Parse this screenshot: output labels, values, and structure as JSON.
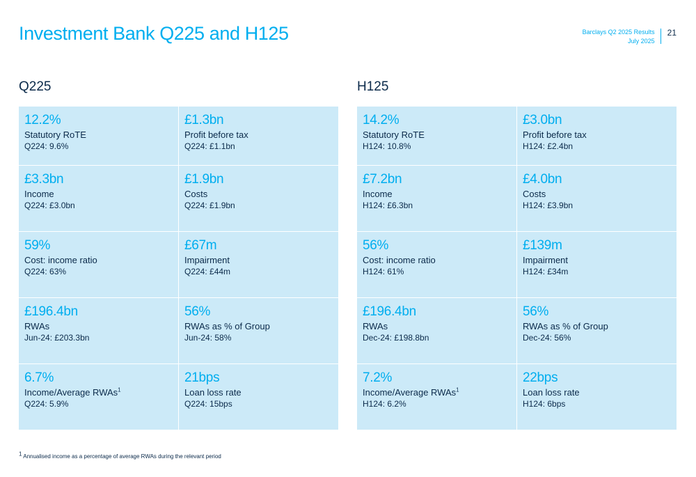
{
  "header": {
    "title": "Investment Bank Q225 and H125",
    "meta_line1": "Barclays Q2 2025 Results",
    "meta_line2": "July 2025",
    "page_number": "21"
  },
  "q225": {
    "heading": "Q225",
    "tiles": [
      {
        "value": "12.2%",
        "label": "Statutory RoTE",
        "compare": "Q224: 9.6%"
      },
      {
        "value": "£1.3bn",
        "label": "Profit before tax",
        "compare": "Q224: £1.1bn"
      },
      {
        "value": "£3.3bn",
        "label": "Income",
        "compare": "Q224: £3.0bn"
      },
      {
        "value": "£1.9bn",
        "label": "Costs",
        "compare": "Q224: £1.9bn"
      },
      {
        "value": "59%",
        "label": "Cost: income ratio",
        "compare": "Q224: 63%"
      },
      {
        "value": "£67m",
        "label": "Impairment",
        "compare": "Q224: £44m"
      },
      {
        "value": "£196.4bn",
        "label": "RWAs",
        "compare": "Jun-24: £203.3bn"
      },
      {
        "value": "56%",
        "label": "RWAs as % of Group",
        "compare": "Jun-24: 58%"
      },
      {
        "value": "6.7%",
        "label": "Income/Average RWAs",
        "sup": "1",
        "compare": "Q224: 5.9%"
      },
      {
        "value": "21bps",
        "label": "Loan loss rate",
        "compare": "Q224: 15bps"
      }
    ]
  },
  "h125": {
    "heading": "H125",
    "tiles": [
      {
        "value": "14.2%",
        "label": "Statutory RoTE",
        "compare": "H124: 10.8%"
      },
      {
        "value": "£3.0bn",
        "label": "Profit before tax",
        "compare": "H124: £2.4bn"
      },
      {
        "value": "£7.2bn",
        "label": "Income",
        "compare": "H124: £6.3bn"
      },
      {
        "value": "£4.0bn",
        "label": "Costs",
        "compare": "H124: £3.9bn"
      },
      {
        "value": "56%",
        "label": "Cost: income ratio",
        "compare": "H124: 61%"
      },
      {
        "value": "£139m",
        "label": "Impairment",
        "compare": "H124: £34m"
      },
      {
        "value": "£196.4bn",
        "label": "RWAs",
        "compare": "Dec-24: £198.8bn"
      },
      {
        "value": "56%",
        "label": "RWAs as % of Group",
        "compare": "Dec-24: 56%"
      },
      {
        "value": "7.2%",
        "label": "Income/Average RWAs",
        "sup": "1",
        "compare": "H124: 6.2%"
      },
      {
        "value": "22bps",
        "label": "Loan loss rate",
        "compare": "H124: 6bps"
      }
    ]
  },
  "footnote": {
    "marker": "1",
    "text": "Annualised income as a percentage of average RWAs during the relevant period"
  },
  "colors": {
    "accent": "#00aeef",
    "text": "#0b2a4a",
    "tile_background": "#cceaf8"
  }
}
